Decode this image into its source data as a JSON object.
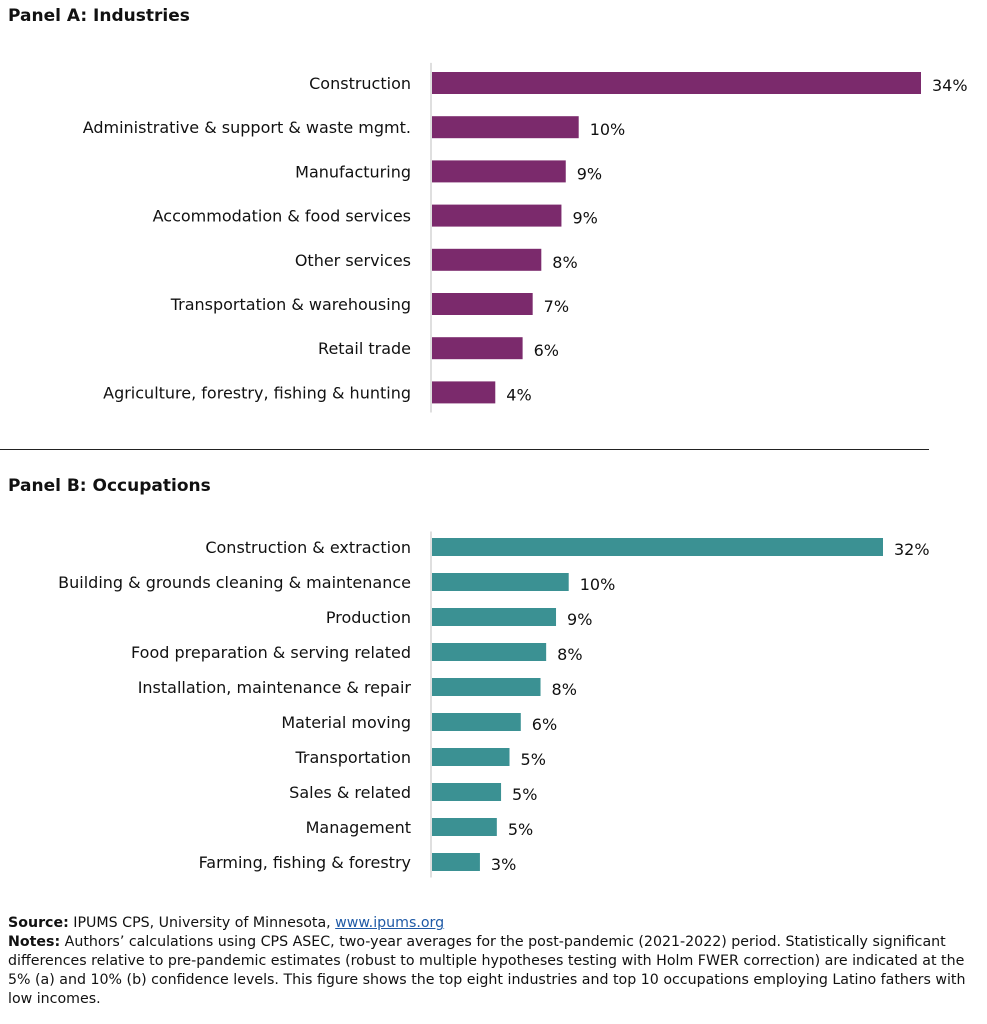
{
  "chart_data": [
    {
      "type": "bar",
      "orientation": "horizontal",
      "title": "Panel A: Industries",
      "categories": [
        "Construction",
        "Administrative & support & waste mgmt.",
        "Manufacturing",
        "Accommodation & food services",
        "Other services",
        "Transportation & warehousing",
        "Retail trade",
        "Agriculture, forestry, fishing & hunting"
      ],
      "values": [
        34,
        10,
        9,
        9,
        8,
        7,
        6,
        4
      ],
      "value_labels": [
        "34%",
        "10%",
        "9%",
        "9%",
        "8%",
        "7%",
        "6%",
        "4%"
      ],
      "plot_values": [
        34,
        10.2,
        9.3,
        9.0,
        7.6,
        7.0,
        6.3,
        4.4
      ],
      "xlim": [
        0,
        34
      ],
      "color": "#7b2a6c",
      "grid": false
    },
    {
      "type": "bar",
      "orientation": "horizontal",
      "title": "Panel B: Occupations",
      "categories": [
        "Construction & extraction",
        "Building & grounds cleaning & maintenance",
        "Production",
        "Food preparation & serving related",
        "Installation, maintenance & repair",
        "Material moving",
        "Transportation",
        "Sales & related",
        "Management",
        "Farming, fishing & forestry"
      ],
      "values": [
        32,
        10,
        9,
        8,
        8,
        6,
        5,
        5,
        5,
        3
      ],
      "value_labels": [
        "32%",
        "10%",
        "9%",
        "8%",
        "8%",
        "6%",
        "5%",
        "5%",
        "5%",
        "3%"
      ],
      "plot_values": [
        32,
        9.7,
        8.8,
        8.1,
        7.7,
        6.3,
        5.5,
        4.9,
        4.6,
        3.4
      ],
      "xlim": [
        0,
        32
      ],
      "color": "#3b9193",
      "grid": false
    }
  ],
  "footer": {
    "source_label": "Source:",
    "source_text": " IPUMS CPS, University of Minnesota, ",
    "source_link": "www.ipums.org",
    "notes_label": "Notes:",
    "notes_text": " Authors’ calculations using CPS ASEC, two-year averages for the post-pandemic (2021-2022) period. Statistically significant differences relative to pre-pandemic estimates (robust to multiple hypotheses testing with Holm FWER correction) are indicated at the 5% (a) and 10% (b) confidence levels. This figure shows the top eight industries and top 10 occupations employing Latino fathers with low incomes."
  }
}
